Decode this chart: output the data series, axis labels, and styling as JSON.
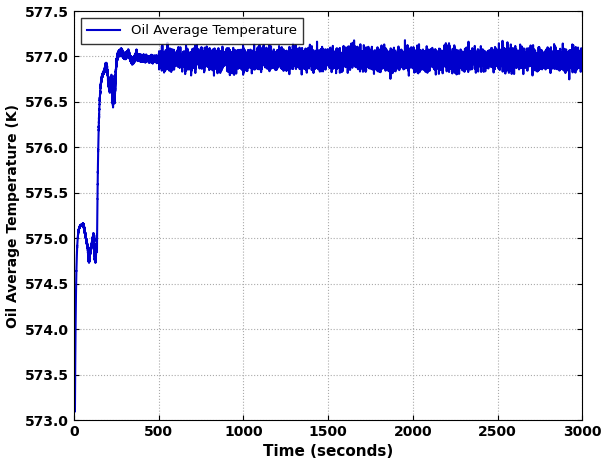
{
  "title": "",
  "xlabel": "Time (seconds)",
  "ylabel": "Oil Average Temperature (K)",
  "legend_label": "Oil Average Temperature",
  "line_color": "#0000CC",
  "line_width": 1.5,
  "xlim": [
    0,
    3000
  ],
  "ylim": [
    573,
    577.5
  ],
  "yticks": [
    573,
    573.5,
    574,
    574.5,
    575,
    575.5,
    576,
    576.5,
    577,
    577.5
  ],
  "xticks": [
    0,
    500,
    1000,
    1500,
    2000,
    2500,
    3000
  ],
  "grid_color": "#aaaaaa",
  "grid_style": ":",
  "background_color": "#ffffff",
  "T0": 573.1,
  "Tss": 576.97,
  "noise_amplitude_ss": 0.06
}
